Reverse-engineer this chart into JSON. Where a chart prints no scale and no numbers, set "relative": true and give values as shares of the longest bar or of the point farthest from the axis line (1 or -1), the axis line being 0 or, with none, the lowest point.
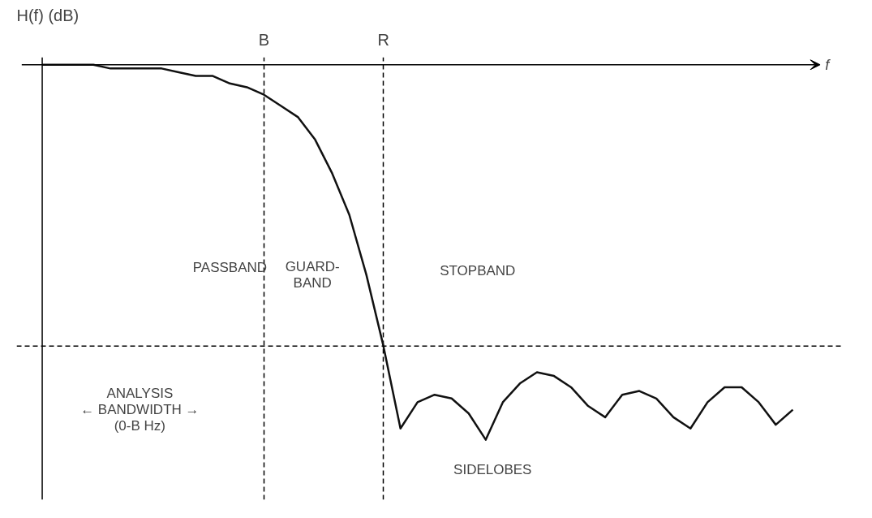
{
  "chart_data": {
    "type": "line",
    "relative": true,
    "ylabel": "H(f) (dB)",
    "xlabel": "f",
    "categories": [
      null,
      null,
      null,
      null,
      null,
      null,
      null,
      null,
      null,
      null,
      null,
      null,
      null,
      "B",
      null,
      null,
      null,
      null,
      null,
      null,
      "R",
      null,
      null,
      null,
      null,
      null,
      null,
      null,
      null,
      null,
      null,
      null,
      null,
      null,
      null,
      null,
      null,
      null,
      null,
      null,
      null,
      null,
      null,
      null,
      null
    ],
    "series": [
      {
        "color": "#111111",
        "values": [
          0,
          0,
          0,
          0,
          -0.01,
          -0.01,
          -0.01,
          -0.01,
          -0.02,
          -0.03,
          -0.03,
          -0.05,
          -0.06,
          -0.08,
          -0.11,
          -0.14,
          -0.2,
          -0.29,
          -0.4,
          -0.56,
          -0.75,
          -0.97,
          -0.9,
          -0.88,
          -0.89,
          -0.93,
          -1.0,
          -0.9,
          -0.85,
          -0.82,
          -0.83,
          -0.86,
          -0.91,
          -0.94,
          -0.88,
          -0.87,
          -0.89,
          -0.94,
          -0.97,
          -0.9,
          -0.86,
          -0.86,
          -0.9,
          -0.96,
          -0.92
        ]
      }
    ],
    "grid": "x",
    "marker": "none",
    "line_style": "solid",
    "ref_lines": [
      {
        "axis": "y",
        "value": -0.75,
        "line_style": "dashed"
      }
    ],
    "annotations": [
      "PASSBAND",
      "GUARD-\nBAND",
      "STOPBAND",
      "ANALYSIS\n← BANDWIDTH →\n(0-B Hz)",
      "SIDELOBES"
    ]
  }
}
